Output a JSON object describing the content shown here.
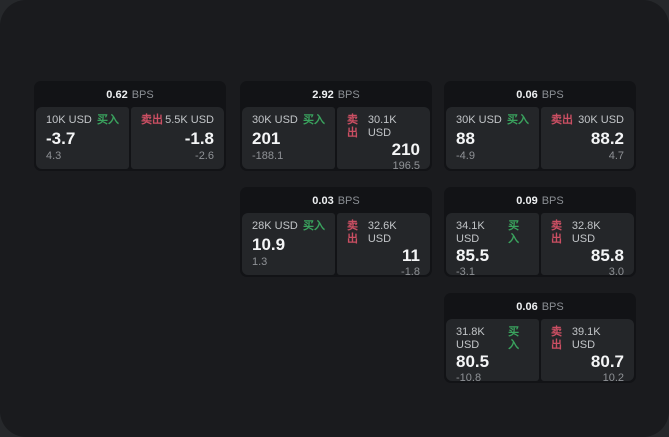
{
  "labels": {
    "bps_unit": "BPS",
    "buy": "买入",
    "sell": "卖出"
  },
  "colors": {
    "buy": "#3aa35e",
    "sell": "#cb4f63",
    "page_background": "#1a1b1e",
    "card_background": "#121316",
    "panel_background": "#242629"
  },
  "cards": [
    {
      "bps": "0.62",
      "buy": {
        "size": "10K USD",
        "value": "-3.7",
        "delta": "4.3"
      },
      "sell": {
        "size": "5.5K USD",
        "value": "-1.8",
        "delta": "-2.6"
      }
    },
    {
      "bps": "2.92",
      "buy": {
        "size": "30K USD",
        "value": "201",
        "delta": "-188.1"
      },
      "sell": {
        "size": "30.1K USD",
        "value": "210",
        "delta": "196.5"
      }
    },
    {
      "bps": "0.06",
      "buy": {
        "size": "30K USD",
        "value": "88",
        "delta": "-4.9"
      },
      "sell": {
        "size": "30K USD",
        "value": "88.2",
        "delta": "4.7"
      }
    },
    {
      "bps": "0.03",
      "buy": {
        "size": "28K USD",
        "value": "10.9",
        "delta": "1.3"
      },
      "sell": {
        "size": "32.6K USD",
        "value": "11",
        "delta": "-1.8"
      }
    },
    {
      "bps": "0.09",
      "buy": {
        "size": "34.1K USD",
        "value": "85.5",
        "delta": "-3.1"
      },
      "sell": {
        "size": "32.8K USD",
        "value": "85.8",
        "delta": "3.0"
      }
    },
    {
      "bps": "0.06",
      "buy": {
        "size": "31.8K USD",
        "value": "80.5",
        "delta": "-10.8"
      },
      "sell": {
        "size": "39.1K USD",
        "value": "80.7",
        "delta": "10.2"
      }
    }
  ]
}
